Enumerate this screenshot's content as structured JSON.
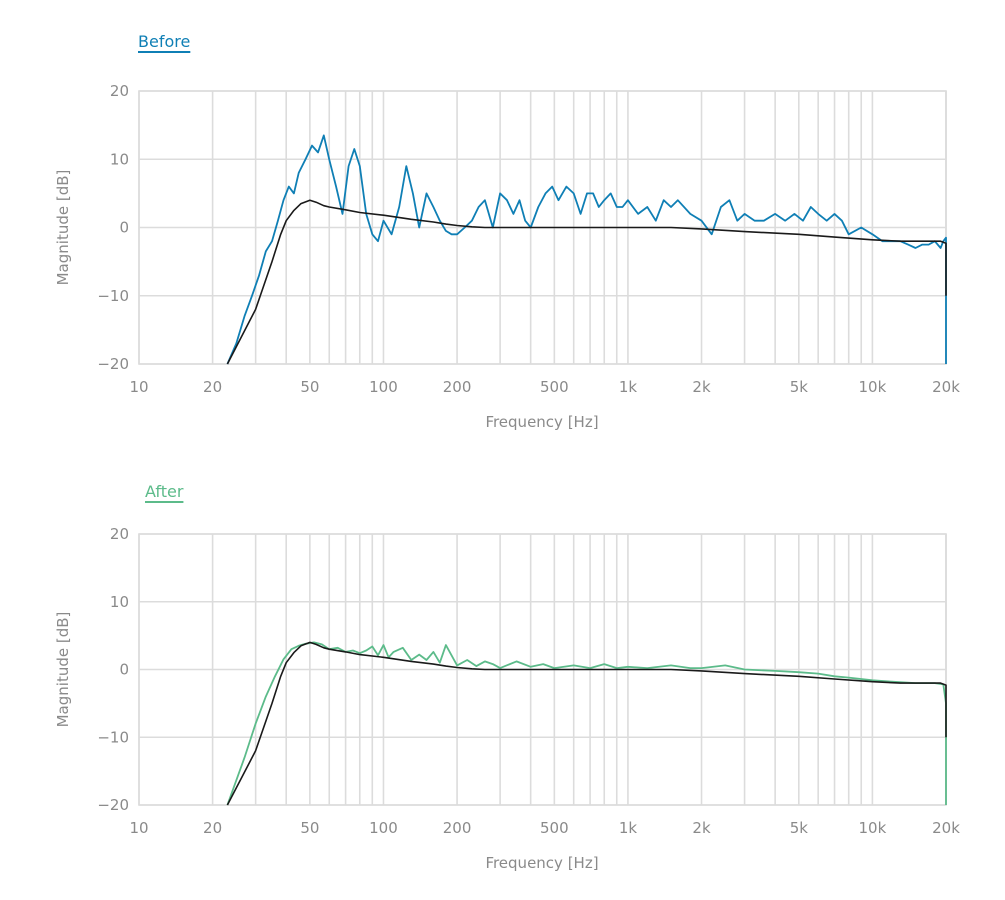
{
  "chart_data": [
    {
      "type": "line",
      "legend": "Before",
      "xlabel": "Frequency [Hz]",
      "ylabel": "Magnitude [dB]",
      "xscale": "log",
      "xlim": [
        10,
        20000
      ],
      "ylim": [
        -20,
        20
      ],
      "xticks": [
        10,
        20,
        50,
        100,
        200,
        500,
        1000,
        2000,
        5000,
        10000,
        20000
      ],
      "xticklabels": [
        "10",
        "20",
        "50",
        "100",
        "200",
        "500",
        "1k",
        "2k",
        "5k",
        "10k",
        "20k"
      ],
      "yticks": [
        20,
        10,
        0,
        -10,
        -20
      ],
      "yticklabels": [
        "20",
        "10",
        "0",
        "−10",
        "−20"
      ],
      "grid": true,
      "legend_position": "top-left",
      "series": [
        {
          "color": "#0f7fb5",
          "x": [
            23,
            25,
            27,
            29,
            31,
            33,
            35,
            37,
            39,
            41,
            43,
            45,
            48,
            51,
            54,
            57,
            60,
            64,
            68,
            72,
            76,
            80,
            85,
            90,
            95,
            100,
            108,
            116,
            124,
            132,
            140,
            150,
            160,
            170,
            180,
            190,
            200,
            215,
            230,
            245,
            260,
            280,
            300,
            320,
            340,
            360,
            380,
            400,
            430,
            460,
            490,
            520,
            560,
            600,
            640,
            680,
            720,
            760,
            800,
            850,
            900,
            950,
            1000,
            1100,
            1200,
            1300,
            1400,
            1500,
            1600,
            1800,
            2000,
            2200,
            2400,
            2600,
            2800,
            3000,
            3300,
            3600,
            4000,
            4400,
            4800,
            5200,
            5600,
            6000,
            6500,
            7000,
            7500,
            8000,
            9000,
            10000,
            11000,
            12000,
            13000,
            14000,
            15000,
            16000,
            17000,
            18000,
            19000,
            19500,
            20000,
            20300,
            20600,
            20800,
            21000
          ],
          "y": [
            -20,
            -17,
            -13,
            -10,
            -7,
            -3.5,
            -2,
            1,
            4,
            6,
            5,
            8,
            10,
            12,
            11,
            13.5,
            10,
            6,
            2,
            9,
            11.5,
            9,
            2,
            -1,
            -2,
            1,
            -1,
            3,
            9,
            5,
            0,
            5,
            3,
            1,
            -0.5,
            -1,
            -1,
            0,
            1,
            3,
            4,
            0,
            5,
            4,
            2,
            4,
            1,
            0,
            3,
            5,
            6,
            4,
            6,
            5,
            2,
            5,
            5,
            3,
            4,
            5,
            3,
            3,
            4,
            2,
            3,
            1,
            4,
            3,
            4,
            2,
            1,
            -1,
            3,
            4,
            1,
            2,
            1,
            1,
            2,
            1,
            2,
            1,
            3,
            2,
            1,
            2,
            1,
            -1,
            0,
            -1,
            -2,
            -2,
            -2,
            -2.5,
            -3,
            -2.5,
            -2.5,
            -2,
            -3,
            -2,
            -1.5,
            -5,
            -10,
            -15,
            -20
          ]
        },
        {
          "color": "#1a1a1a",
          "x": [
            23,
            30,
            35,
            38,
            40,
            43,
            46,
            50,
            53,
            57,
            60,
            70,
            80,
            100,
            130,
            160,
            180,
            200,
            230,
            260,
            300,
            400,
            600,
            1000,
            1500,
            2000,
            3000,
            5000,
            7000,
            10000,
            13000,
            17000,
            19000,
            20000,
            20500,
            20800,
            21000
          ],
          "y": [
            -20,
            -12,
            -5,
            -1,
            1,
            2.5,
            3.5,
            4,
            3.7,
            3.2,
            3,
            2.6,
            2.2,
            1.8,
            1.2,
            0.8,
            0.5,
            0.3,
            0.1,
            0,
            0,
            0,
            0,
            0,
            0,
            -0.2,
            -0.6,
            -1,
            -1.4,
            -1.8,
            -2,
            -2,
            -2,
            -2.3,
            -4,
            -6,
            -10
          ]
        }
      ]
    },
    {
      "type": "line",
      "legend": "After",
      "xlabel": "Frequency [Hz]",
      "ylabel": "Magnitude [dB]",
      "xscale": "log",
      "xlim": [
        10,
        20000
      ],
      "ylim": [
        -20,
        20
      ],
      "xticks": [
        10,
        20,
        50,
        100,
        200,
        500,
        1000,
        2000,
        5000,
        10000,
        20000
      ],
      "xticklabels": [
        "10",
        "20",
        "50",
        "100",
        "200",
        "500",
        "1k",
        "2k",
        "5k",
        "10k",
        "20k"
      ],
      "yticks": [
        20,
        10,
        0,
        -10,
        -20
      ],
      "yticklabels": [
        "20",
        "10",
        "0",
        "−10",
        "−20"
      ],
      "grid": true,
      "legend_position": "top-left",
      "series": [
        {
          "color": "#5cbb8a",
          "x": [
            23,
            27,
            30,
            33,
            36,
            39,
            42,
            45,
            48,
            52,
            56,
            60,
            65,
            70,
            75,
            80,
            85,
            90,
            95,
            100,
            105,
            110,
            120,
            130,
            140,
            150,
            160,
            170,
            180,
            200,
            220,
            240,
            260,
            280,
            300,
            350,
            400,
            450,
            500,
            600,
            700,
            800,
            900,
            1000,
            1200,
            1500,
            1800,
            2000,
            2500,
            3000,
            4000,
            5000,
            6000,
            7000,
            8000,
            10000,
            12000,
            15000,
            18000,
            19500,
            20000,
            20300,
            20600,
            21000
          ],
          "y": [
            -20,
            -13,
            -8,
            -4,
            -1,
            1.5,
            3,
            3.5,
            3.8,
            4,
            3.7,
            3,
            3.2,
            2.6,
            2.8,
            2.4,
            2.8,
            3.4,
            2.1,
            3.6,
            1.8,
            2.6,
            3.2,
            1.4,
            2.2,
            1.4,
            2.6,
            1.0,
            3.6,
            0.6,
            1.4,
            0.5,
            1.2,
            0.8,
            0.2,
            1.2,
            0.4,
            0.8,
            0.2,
            0.6,
            0.2,
            0.8,
            0.2,
            0.4,
            0.2,
            0.6,
            0.2,
            0.2,
            0.6,
            0,
            -0.2,
            -0.4,
            -0.6,
            -1,
            -1.2,
            -1.6,
            -1.8,
            -2,
            -2,
            -2.2,
            -5,
            -10,
            -15,
            -20
          ]
        },
        {
          "color": "#1a1a1a",
          "x": [
            23,
            30,
            35,
            38,
            40,
            43,
            46,
            50,
            53,
            57,
            60,
            70,
            80,
            100,
            130,
            160,
            180,
            200,
            230,
            260,
            300,
            400,
            600,
            1000,
            1500,
            2000,
            3000,
            5000,
            7000,
            10000,
            13000,
            17000,
            19000,
            20000,
            20500,
            20800,
            21000
          ],
          "y": [
            -20,
            -12,
            -5,
            -1,
            1,
            2.5,
            3.5,
            4,
            3.7,
            3.2,
            3,
            2.6,
            2.2,
            1.8,
            1.2,
            0.8,
            0.5,
            0.3,
            0.1,
            0,
            0,
            0,
            0,
            0,
            0,
            -0.2,
            -0.6,
            -1,
            -1.4,
            -1.8,
            -2,
            -2,
            -2,
            -2.3,
            -4,
            -6,
            -10
          ]
        }
      ]
    }
  ]
}
